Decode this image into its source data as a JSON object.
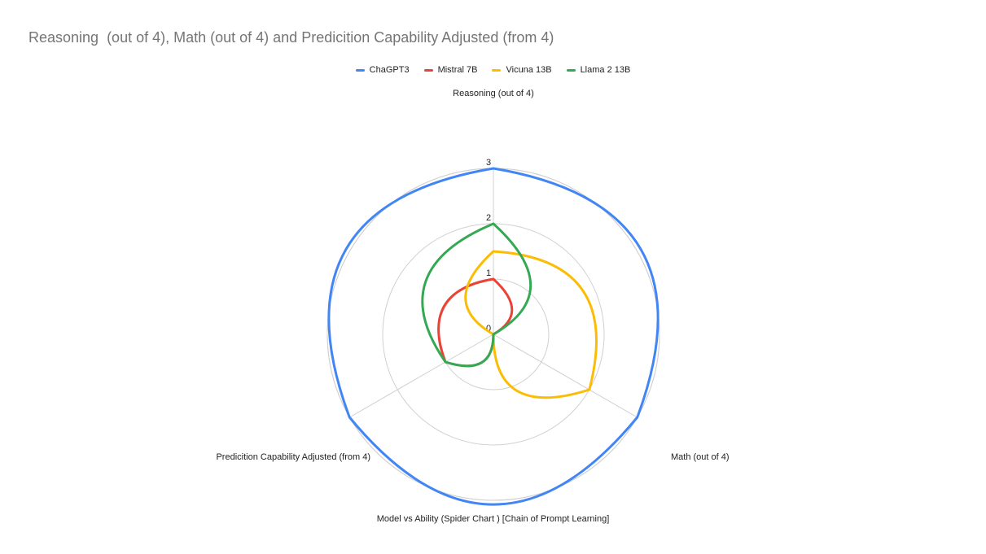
{
  "chart_data": {
    "type": "radar",
    "title": "Reasoning  (out of 4), Math (out of 4) and Predicition Capability Adjusted (from 4)",
    "xlabel": "Model vs Ability (Spider Chart ) [Chain of Prompt Learning]",
    "axes": [
      "Reasoning  (out of 4)",
      "Math (out of 4)",
      "Predicition Capability Adjusted (from 4)"
    ],
    "rlim": [
      0,
      3
    ],
    "ticks": [
      "0",
      "1",
      "2",
      "3"
    ],
    "grid": true,
    "legend_position": "top",
    "series": [
      {
        "name": "ChaGPT3",
        "color": "#4285F4",
        "values": [
          3,
          3,
          3
        ]
      },
      {
        "name": "Mistral 7B",
        "color": "#EA4335",
        "values": [
          1,
          0,
          1
        ]
      },
      {
        "name": "Vicuna 13B",
        "color": "#FBBC04",
        "values": [
          1.5,
          2,
          0
        ]
      },
      {
        "name": "Llama 2 13B",
        "color": "#34A853",
        "values": [
          2,
          0,
          1
        ]
      }
    ]
  }
}
